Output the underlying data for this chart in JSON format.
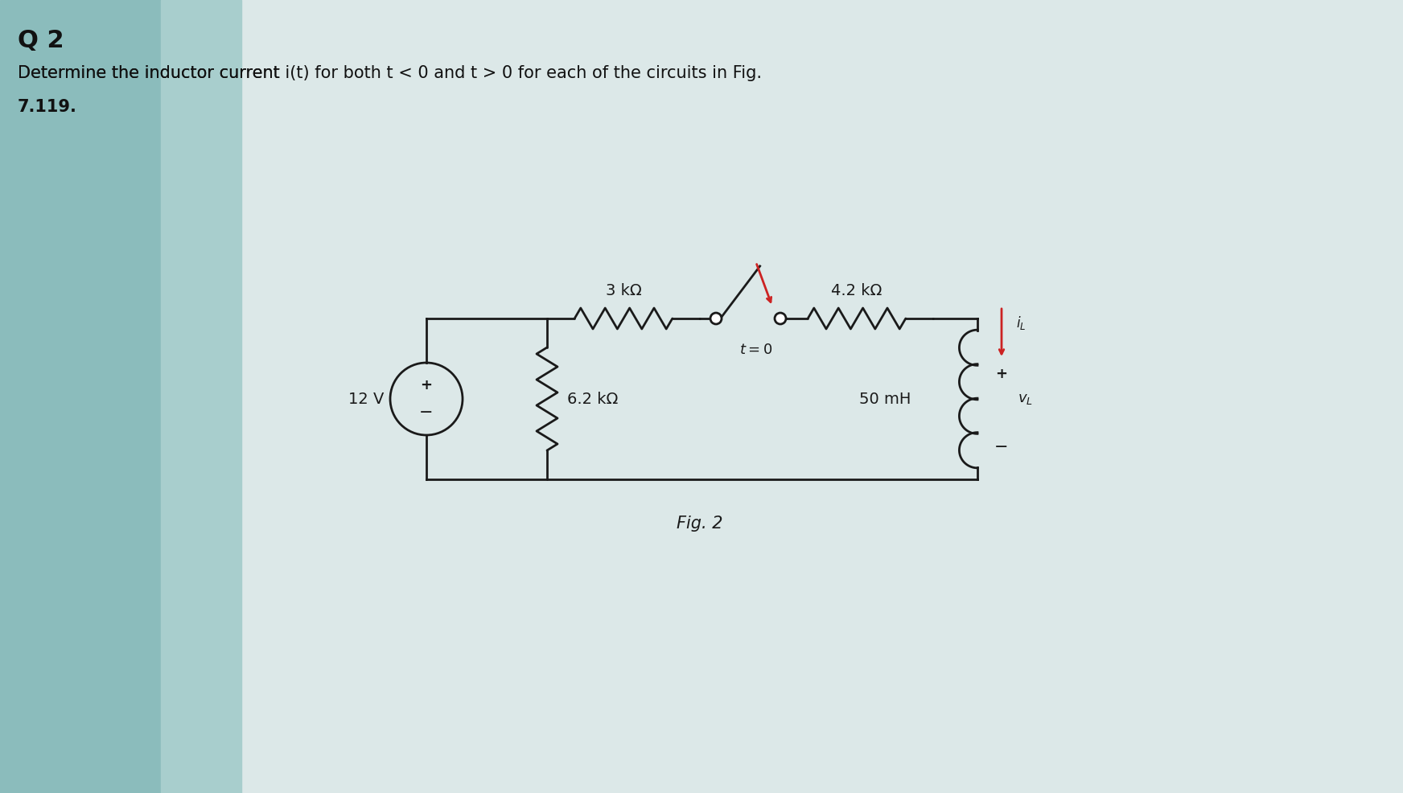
{
  "title": "Q 2",
  "prob_line1_a": "Determine the inductor current ",
  "prob_line1_it": "i(t)",
  "prob_line1_b": " for both ",
  "prob_line1_tlt0": "t < 0",
  "prob_line1_c": " and ",
  "prob_line1_tgt0": "t > 0",
  "prob_line1_d": " for each of the circuits in Fig.",
  "prob_line2": "7.119.",
  "fig_label": "Fig. 2",
  "res_3k": "3 kΩ",
  "res_42k": "4.2 kΩ",
  "res_62k": "6.2 kΩ",
  "ind_label": "50 mH",
  "vs_label": "12 V",
  "sw_label": "t = 0",
  "iL_label": "i_L",
  "vL_label": "v_L",
  "bg_left": "#9ecece",
  "bg_mid": "#c8dede",
  "bg_right": "#e8eaea",
  "wire_color": "#1a1a1a",
  "red_color": "#cc2222",
  "font_size_title": 20,
  "font_size_text": 15,
  "font_size_label": 14,
  "lw": 2.0
}
